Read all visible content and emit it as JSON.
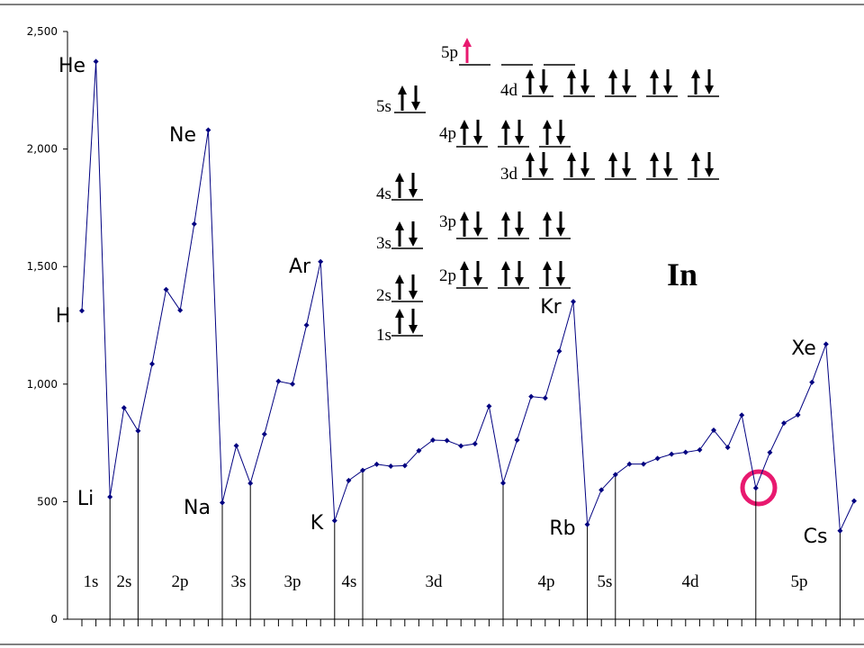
{
  "chart_data": {
    "type": "line",
    "categories": [
      "H",
      "He",
      "Li",
      null,
      null,
      null,
      null,
      null,
      null,
      "Ne",
      "Na",
      null,
      null,
      null,
      null,
      null,
      null,
      "Ar",
      "K",
      null,
      null,
      null,
      null,
      null,
      null,
      null,
      null,
      null,
      null,
      null,
      null,
      null,
      null,
      null,
      null,
      "Kr",
      "Rb",
      null,
      null,
      null,
      null,
      null,
      null,
      null,
      null,
      null,
      null,
      null,
      null,
      null,
      null,
      null,
      null,
      "Xe",
      "Cs",
      null
    ],
    "values": [
      1312,
      2372,
      520,
      899,
      801,
      1086,
      1402,
      1314,
      1681,
      2081,
      496,
      738,
      578,
      787,
      1012,
      1000,
      1251,
      1521,
      419,
      590,
      633,
      659,
      651,
      653,
      717,
      762,
      760,
      737,
      746,
      906,
      579,
      762,
      947,
      941,
      1140,
      1351,
      403,
      550,
      615,
      660,
      660,
      684,
      702,
      710,
      720,
      804,
      731,
      868,
      558,
      709,
      834,
      869,
      1008,
      1170,
      376,
      503
    ],
    "color": "#000080",
    "ylim": [
      0,
      2500
    ],
    "yticks": [
      0,
      500,
      {
        "value": 1000,
        "label": "1,000"
      },
      {
        "value": 1500,
        "label": "1,500"
      },
      {
        "value": 2000,
        "label": "2,000"
      },
      {
        "value": 2500,
        "label": "2,500"
      }
    ],
    "block_labels": [
      "1s",
      "2s",
      "2p",
      "3s",
      "3p",
      "4s",
      "3d",
      "4p",
      "5s",
      "4d",
      "5p"
    ],
    "orbital_diagram": {
      "title": "In",
      "levels": [
        "5p",
        "4d",
        "5s",
        "4p",
        "3d",
        "4s",
        "3p",
        "3s",
        "2p",
        "2s",
        "1s"
      ]
    }
  }
}
